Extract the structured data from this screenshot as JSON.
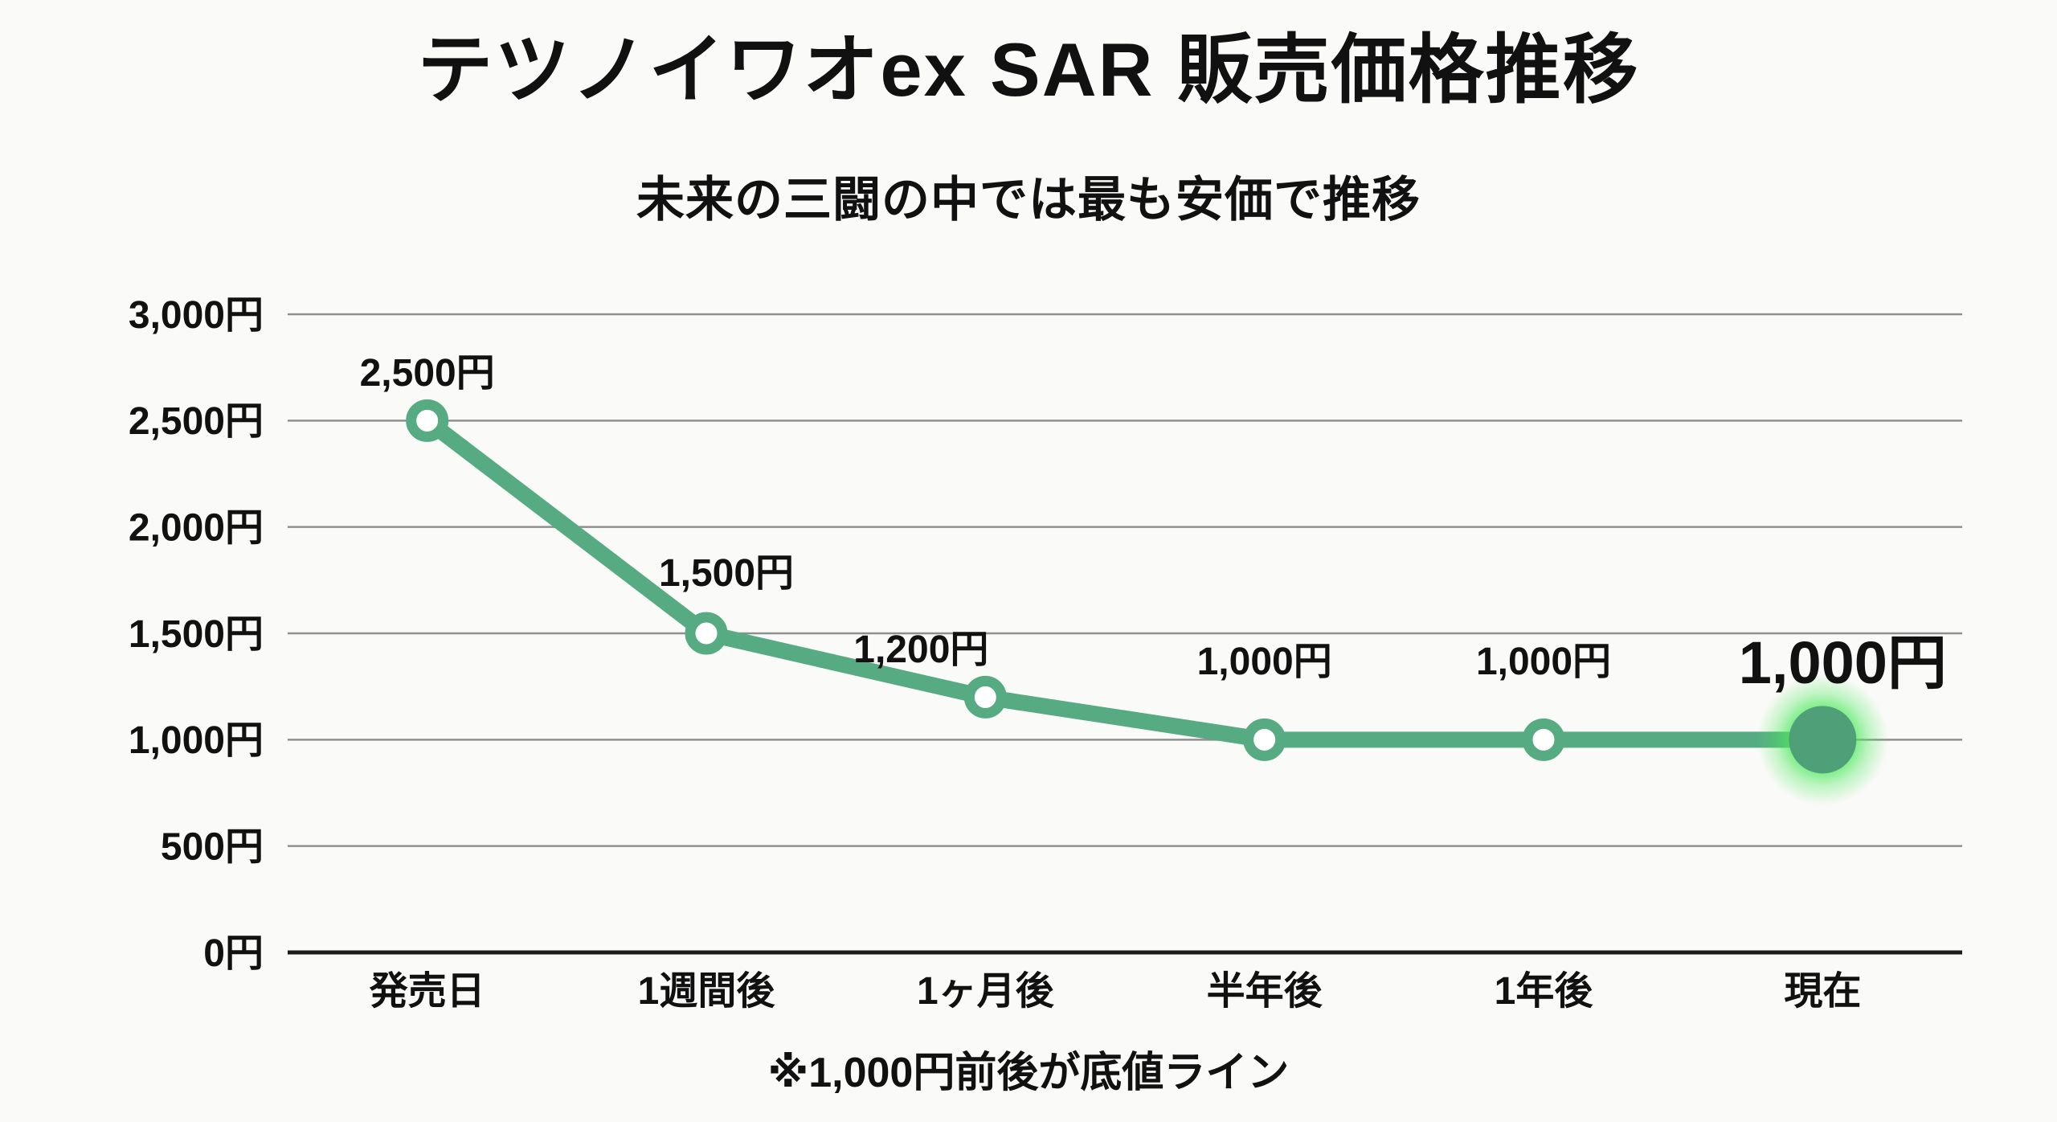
{
  "page": {
    "title": "テツノイワオex SAR 販売価格推移",
    "subtitle": "未来の三闘の中では最も安価で推移",
    "footnote": "※1,000円前後が底値ライン"
  },
  "colors": {
    "background": "#fafaf8",
    "line": "#57ab82",
    "marker_ring": "#57ab82",
    "marker_fill": "#ffffff",
    "final_dot_fill": "#4fa078",
    "glow": "#4de95c",
    "gridline": "#8f8f8f",
    "axis_line": "#1c1c1c",
    "text": "#111111"
  },
  "chart_data": {
    "type": "line",
    "title": "テツノイワオex SAR 販売価格推移",
    "subtitle": "未来の三闘の中では最も安価で推移",
    "categories": [
      "発売日",
      "1週間後",
      "1ヶ月後",
      "半年後",
      "1年後",
      "現在"
    ],
    "series": [
      {
        "name": "販売価格",
        "values": [
          2500,
          1500,
          1200,
          1000,
          1000,
          1000
        ]
      }
    ],
    "point_labels": [
      "2,500円",
      "1,500円",
      "1,200円",
      "1,000円",
      "1,000円",
      "1,000円"
    ],
    "highlight_index": 5,
    "xlabel": "",
    "ylabel": "",
    "ylim": [
      0,
      3000
    ],
    "yticks": [
      {
        "value": 3000,
        "label": "3,000円"
      },
      {
        "value": 2500,
        "label": "2,500円"
      },
      {
        "value": 2000,
        "label": "2,000円"
      },
      {
        "value": 1500,
        "label": "1,500円"
      },
      {
        "value": 1000,
        "label": "1,000円"
      },
      {
        "value": 500,
        "label": "500円"
      },
      {
        "value": 0,
        "label": "0円"
      }
    ],
    "grid": true,
    "legend": false,
    "annotation": "※1,000円前後が底値ライン"
  }
}
